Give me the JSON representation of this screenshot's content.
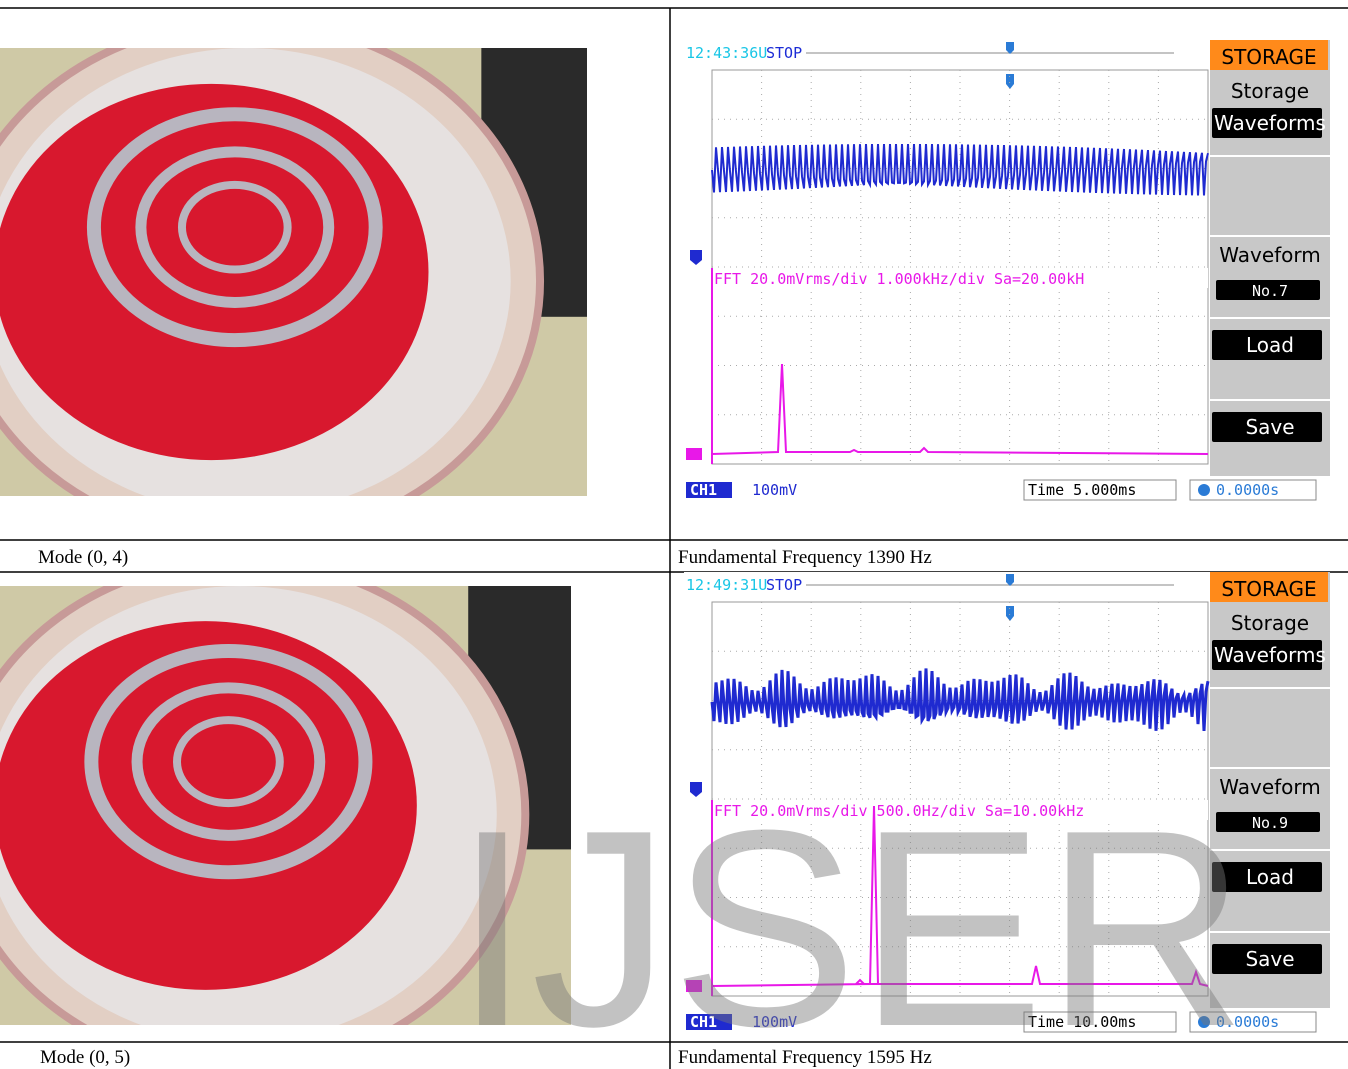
{
  "rows": [
    {
      "scope": {
        "clock": "12:43:36U",
        "state": "STOP",
        "menu_title": "STORAGE",
        "menu": [
          "Storage",
          "Waveforms",
          "Waveform",
          "No.7",
          "Load",
          "Save"
        ],
        "fft_label": "FFT 20.0mVrms/div 1.000kHz/div Sa=20.00kH",
        "channel": "CH1",
        "volts": "100mV",
        "time": "Time 5.000ms",
        "offset": "0.0000s"
      },
      "captions": [
        "Mode (0, 4)",
        "Fundamental Frequency 1390 Hz"
      ]
    },
    {
      "scope": {
        "clock": "12:49:31U",
        "state": "STOP",
        "menu_title": "STORAGE",
        "menu": [
          "Storage",
          "Waveforms",
          "Waveform",
          "No.9",
          "Load",
          "Save"
        ],
        "fft_label": "FFT 20.0mVrms/div 500.0Hz/div Sa=10.00kHz",
        "channel": "CH1",
        "volts": "100mV",
        "time": "Time 10.00ms",
        "offset": "0.0000s"
      },
      "captions": [
        "Mode (0, 5)",
        "Fundamental Frequency 1595 Hz"
      ]
    }
  ],
  "watermark": "IJSER"
}
